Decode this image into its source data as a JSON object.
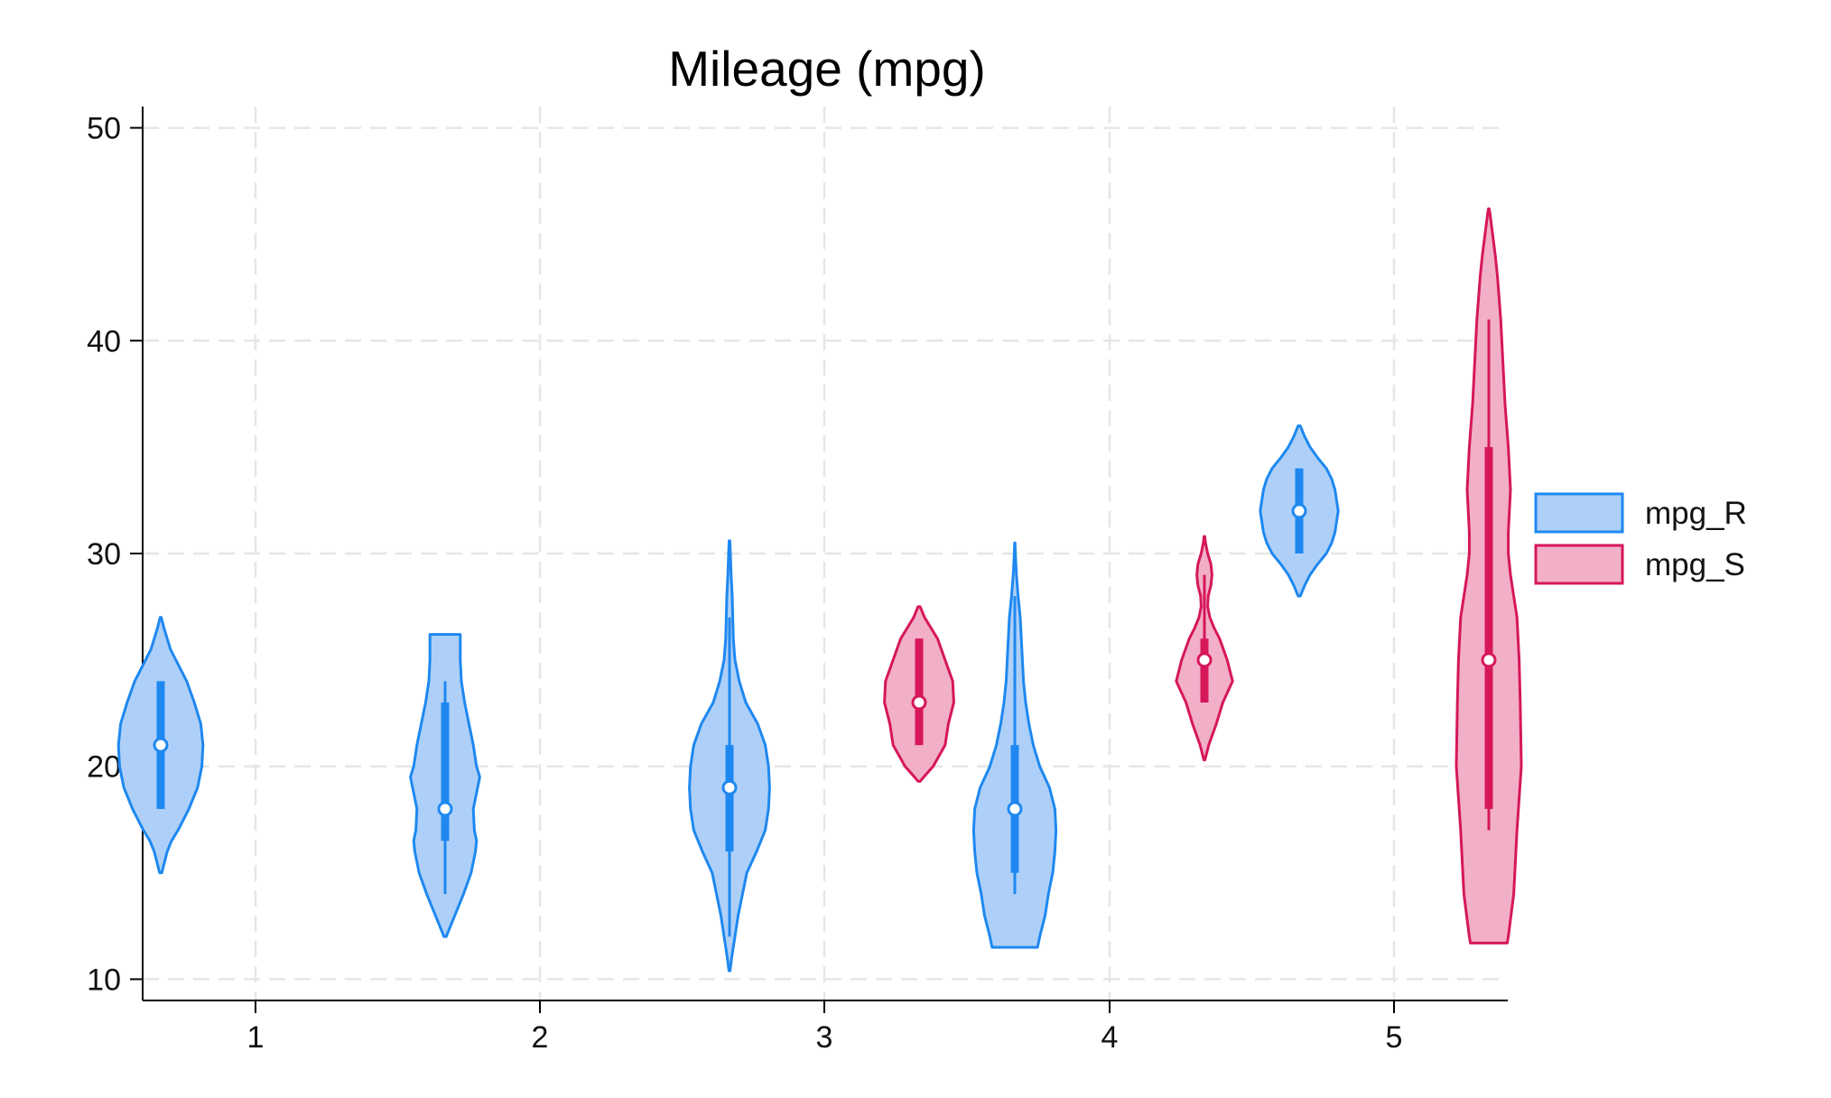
{
  "chart_data": {
    "type": "violin",
    "title": "Mileage (mpg)",
    "xlabel": "",
    "ylabel": "",
    "categories": [
      "1",
      "2",
      "3",
      "4",
      "5"
    ],
    "ylim": [
      9,
      51
    ],
    "yticks": [
      10,
      20,
      30,
      40,
      50
    ],
    "grid": true,
    "legend_position": "right",
    "series": [
      {
        "name": "mpg_R",
        "fill": "#aed0f8",
        "stroke": "#1e88f0",
        "violins": [
          {
            "category": "1",
            "min": 15,
            "max": 27,
            "q1": 18,
            "median": 21,
            "q3": 24,
            "wlow": 18,
            "whigh": 24,
            "density": [
              [
                15,
                0.01
              ],
              [
                16,
                0.06
              ],
              [
                16.5,
                0.1
              ],
              [
                17,
                0.16
              ],
              [
                18,
                0.26
              ],
              [
                19,
                0.34
              ],
              [
                20,
                0.38
              ],
              [
                21,
                0.39
              ],
              [
                22,
                0.37
              ],
              [
                23,
                0.31
              ],
              [
                24,
                0.24
              ],
              [
                25,
                0.14
              ],
              [
                25.5,
                0.09
              ],
              [
                26,
                0.06
              ],
              [
                26.5,
                0.03
              ],
              [
                27,
                0.005
              ]
            ]
          },
          {
            "category": "2",
            "min": 12,
            "max": 26.2,
            "q1": 16.5,
            "median": 18,
            "q3": 23,
            "wlow": 14,
            "whigh": 24,
            "density": [
              [
                12,
                0.01
              ],
              [
                12.5,
                0.05
              ],
              [
                13,
                0.09
              ],
              [
                14,
                0.17
              ],
              [
                15,
                0.24
              ],
              [
                16,
                0.28
              ],
              [
                16.5,
                0.29
              ],
              [
                17,
                0.27
              ],
              [
                18,
                0.26
              ],
              [
                19,
                0.3
              ],
              [
                19.5,
                0.32
              ],
              [
                20,
                0.29
              ],
              [
                21,
                0.26
              ],
              [
                22,
                0.22
              ],
              [
                23,
                0.18
              ],
              [
                24,
                0.15
              ],
              [
                25,
                0.14
              ],
              [
                26,
                0.14
              ],
              [
                26.2,
                0.14
              ]
            ]
          },
          {
            "category": "3",
            "min": 10.4,
            "max": 30.6,
            "q1": 16,
            "median": 19,
            "q3": 21,
            "wlow": 12,
            "whigh": 27,
            "density": [
              [
                10.4,
                0.005
              ],
              [
                11,
                0.02
              ],
              [
                12,
                0.05
              ],
              [
                13,
                0.08
              ],
              [
                14,
                0.12
              ],
              [
                15,
                0.16
              ],
              [
                16,
                0.25
              ],
              [
                17,
                0.33
              ],
              [
                18,
                0.36
              ],
              [
                19,
                0.37
              ],
              [
                20,
                0.36
              ],
              [
                21,
                0.33
              ],
              [
                22,
                0.26
              ],
              [
                23,
                0.15
              ],
              [
                24,
                0.09
              ],
              [
                25,
                0.05
              ],
              [
                26,
                0.035
              ],
              [
                27,
                0.03
              ],
              [
                28,
                0.025
              ],
              [
                29,
                0.015
              ],
              [
                30,
                0.008
              ],
              [
                30.6,
                0.003
              ]
            ]
          },
          {
            "category": "4",
            "min": 11.5,
            "max": 30.5,
            "q1": 15,
            "median": 18,
            "q3": 21,
            "wlow": 14,
            "whigh": 28,
            "density": [
              [
                11.5,
                0.21
              ],
              [
                12,
                0.23
              ],
              [
                13,
                0.28
              ],
              [
                14,
                0.31
              ],
              [
                15,
                0.35
              ],
              [
                16,
                0.37
              ],
              [
                17,
                0.38
              ],
              [
                18,
                0.37
              ],
              [
                19,
                0.32
              ],
              [
                20,
                0.23
              ],
              [
                21,
                0.17
              ],
              [
                22,
                0.13
              ],
              [
                23,
                0.1
              ],
              [
                24,
                0.08
              ],
              [
                25,
                0.07
              ],
              [
                26,
                0.06
              ],
              [
                27,
                0.05
              ],
              [
                28,
                0.03
              ],
              [
                29,
                0.015
              ],
              [
                30,
                0.005
              ],
              [
                30.5,
                0.002
              ]
            ]
          },
          {
            "category": "5",
            "min": 28,
            "max": 36,
            "q1": 30,
            "median": 32,
            "q3": 34,
            "wlow": 30,
            "whigh": 34,
            "density": [
              [
                28,
                0.01
              ],
              [
                28.5,
                0.05
              ],
              [
                29,
                0.1
              ],
              [
                29.5,
                0.17
              ],
              [
                30,
                0.25
              ],
              [
                30.5,
                0.3
              ],
              [
                31,
                0.33
              ],
              [
                32,
                0.36
              ],
              [
                33,
                0.33
              ],
              [
                33.5,
                0.3
              ],
              [
                34,
                0.25
              ],
              [
                34.5,
                0.17
              ],
              [
                35,
                0.1
              ],
              [
                35.5,
                0.05
              ],
              [
                36,
                0.01
              ]
            ]
          }
        ]
      },
      {
        "name": "mpg_S",
        "fill": "#f2afc8",
        "stroke": "#d6175a",
        "violins": [
          {
            "category": "3",
            "min": 19.3,
            "max": 27.5,
            "q1": 21,
            "median": 23,
            "q3": 26,
            "wlow": 21,
            "whigh": 26,
            "density": [
              [
                19.3,
                0.01
              ],
              [
                19.6,
                0.06
              ],
              [
                20,
                0.13
              ],
              [
                21,
                0.24
              ],
              [
                22,
                0.27
              ],
              [
                23,
                0.32
              ],
              [
                24,
                0.31
              ],
              [
                25,
                0.24
              ],
              [
                26,
                0.17
              ],
              [
                26.5,
                0.11
              ],
              [
                27,
                0.05
              ],
              [
                27.5,
                0.01
              ]
            ]
          },
          {
            "category": "4",
            "min": 20.3,
            "max": 30.8,
            "q1": 23,
            "median": 25,
            "q3": 26,
            "wlow": 23,
            "whigh": 29,
            "density": [
              [
                20.3,
                0.005
              ],
              [
                21,
                0.04
              ],
              [
                22,
                0.11
              ],
              [
                23,
                0.17
              ],
              [
                24,
                0.26
              ],
              [
                25,
                0.21
              ],
              [
                26,
                0.14
              ],
              [
                26.5,
                0.09
              ],
              [
                27,
                0.05
              ],
              [
                27.5,
                0.03
              ],
              [
                28,
                0.035
              ],
              [
                28.5,
                0.06
              ],
              [
                29,
                0.07
              ],
              [
                29.5,
                0.06
              ],
              [
                30,
                0.03
              ],
              [
                30.5,
                0.01
              ],
              [
                30.8,
                0.003
              ]
            ]
          },
          {
            "category": "5",
            "min": 11.7,
            "max": 46.2,
            "q1": 18,
            "median": 25,
            "q3": 35,
            "wlow": 17,
            "whigh": 41,
            "density": [
              [
                11.7,
                0.17
              ],
              [
                12,
                0.18
              ],
              [
                14,
                0.23
              ],
              [
                17,
                0.26
              ],
              [
                20,
                0.3
              ],
              [
                23,
                0.29
              ],
              [
                25,
                0.28
              ],
              [
                27,
                0.26
              ],
              [
                29,
                0.2
              ],
              [
                30,
                0.18
              ],
              [
                31,
                0.18
              ],
              [
                33,
                0.2
              ],
              [
                35,
                0.18
              ],
              [
                37,
                0.15
              ],
              [
                39,
                0.13
              ],
              [
                41,
                0.11
              ],
              [
                43,
                0.08
              ],
              [
                44,
                0.06
              ],
              [
                45,
                0.035
              ],
              [
                46,
                0.01
              ],
              [
                46.2,
                0.003
              ]
            ]
          }
        ]
      }
    ]
  }
}
